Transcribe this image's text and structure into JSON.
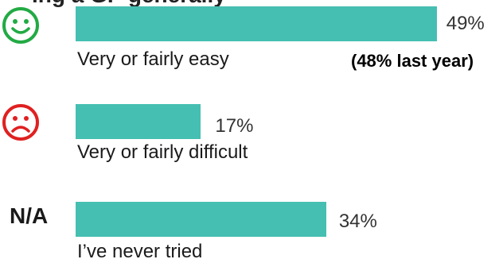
{
  "clipped_title_fragment": "ing a GP generally",
  "chart_data": {
    "type": "bar",
    "orientation": "horizontal",
    "categories": [
      "Very or fairly easy",
      "Very or fairly difficult",
      "I’ve never tried"
    ],
    "values": [
      49,
      17,
      34
    ],
    "value_labels": [
      "49%",
      "17%",
      "34%"
    ],
    "unit": "%",
    "xlim": [
      0,
      50
    ],
    "annotations": [
      "(48% last year)"
    ],
    "row_markers": [
      "happy-face-icon",
      "sad-face-icon",
      "N/A"
    ],
    "bar_color": "#45bfb1",
    "grid": false
  },
  "colors": {
    "happy": "#22aa44",
    "sad": "#e02020",
    "bar": "#45bfb1"
  }
}
